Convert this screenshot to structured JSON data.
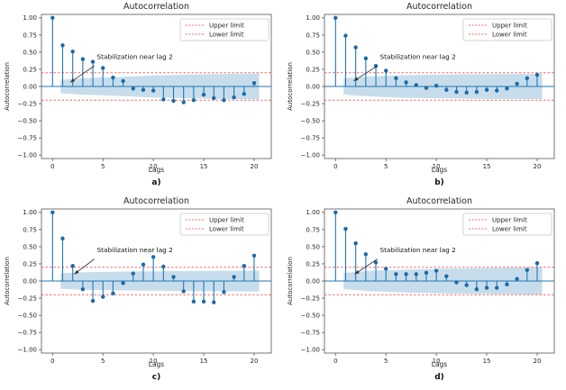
{
  "colors": {
    "stem": "#1f77b4",
    "marker": "#1c6aa8",
    "zero_line": "#1f77b4",
    "band": "#c7ddec",
    "limit_line": "#f26a6a",
    "spine": "#555555",
    "tick_text": "#262626",
    "annotation": "#333333",
    "legend_border": "#c9c9c9",
    "legend_bg": "#ffffff"
  },
  "chart_data": [
    {
      "type": "stem",
      "sublabel": "a)",
      "title": "Autocorrelation",
      "xlabel": "Lags",
      "ylabel": "Autocorrelation",
      "legend": {
        "position": "upper-right",
        "entries": [
          "Upper limit",
          "Lower limit"
        ]
      },
      "annotation": {
        "text": "Stabilization near lag 2",
        "text_xy": [
          4.4,
          0.4
        ],
        "arrow_from": [
          4.15,
          0.3
        ],
        "arrow_to": [
          1.75,
          0.06
        ]
      },
      "upper_limit": 0.2,
      "lower_limit": -0.2,
      "xlim": [
        -1.1,
        21.7
      ],
      "ylim": [
        -1.05,
        1.05
      ],
      "xticks": [
        0,
        5,
        10,
        15,
        20
      ],
      "yticks": [
        {
          "value": 1.0,
          "label": "1.00"
        },
        {
          "value": 0.75,
          "label": "0.75"
        },
        {
          "value": 0.5,
          "label": "0.50"
        },
        {
          "value": 0.25,
          "label": "0.25"
        },
        {
          "value": 0.0,
          "label": "0.00"
        },
        {
          "value": -0.25,
          "label": "−0.25"
        },
        {
          "value": -0.5,
          "label": "−0.50"
        },
        {
          "value": -0.75,
          "label": "−0.75"
        },
        {
          "value": -1.0,
          "label": "−1.00"
        }
      ],
      "lags": [
        0,
        1,
        2,
        3,
        4,
        5,
        6,
        7,
        8,
        9,
        10,
        11,
        12,
        13,
        14,
        15,
        16,
        17,
        18,
        19,
        20
      ],
      "values": [
        1.0,
        0.6,
        0.51,
        0.4,
        0.36,
        0.27,
        0.13,
        0.08,
        -0.03,
        -0.05,
        -0.06,
        -0.19,
        -0.21,
        -0.23,
        -0.2,
        -0.12,
        -0.17,
        -0.2,
        -0.16,
        -0.11,
        0.05
      ],
      "band_halfwidth": [
        0.1,
        0.11,
        0.12,
        0.125,
        0.13,
        0.135,
        0.142,
        0.148,
        0.154,
        0.16,
        0.164,
        0.168,
        0.171,
        0.174,
        0.177,
        0.18,
        0.182,
        0.184,
        0.186,
        0.188
      ]
    },
    {
      "type": "stem",
      "sublabel": "b)",
      "title": "Autocorrelation",
      "xlabel": "Lags",
      "ylabel": "Autocorrelation",
      "legend": {
        "position": "upper-right",
        "entries": [
          "Upper limit",
          "Lower limit"
        ]
      },
      "annotation": {
        "text": "Stabilization near lag 2",
        "text_xy": [
          4.4,
          0.4
        ],
        "arrow_from": [
          4.15,
          0.3
        ],
        "arrow_to": [
          1.8,
          0.08
        ]
      },
      "upper_limit": 0.2,
      "lower_limit": -0.2,
      "xlim": [
        -1.1,
        21.7
      ],
      "ylim": [
        -1.05,
        1.05
      ],
      "xticks": [
        0,
        5,
        10,
        15,
        20
      ],
      "yticks": [
        {
          "value": 1.0,
          "label": "1.00"
        },
        {
          "value": 0.75,
          "label": "0.75"
        },
        {
          "value": 0.5,
          "label": "0.50"
        },
        {
          "value": 0.25,
          "label": "0.25"
        },
        {
          "value": 0.0,
          "label": "0.00"
        },
        {
          "value": -0.25,
          "label": "−0.25"
        },
        {
          "value": -0.5,
          "label": "−0.50"
        },
        {
          "value": -0.75,
          "label": "−0.75"
        },
        {
          "value": -1.0,
          "label": "−1.00"
        }
      ],
      "lags": [
        0,
        1,
        2,
        3,
        4,
        5,
        6,
        7,
        8,
        9,
        10,
        11,
        12,
        13,
        14,
        15,
        16,
        17,
        18,
        19,
        20
      ],
      "values": [
        1.0,
        0.74,
        0.57,
        0.41,
        0.3,
        0.23,
        0.12,
        0.06,
        0.02,
        -0.02,
        0.01,
        -0.05,
        -0.08,
        -0.09,
        -0.08,
        -0.05,
        -0.06,
        -0.03,
        0.04,
        0.12,
        0.17
      ],
      "band_halfwidth": [
        0.12,
        0.132,
        0.142,
        0.15,
        0.156,
        0.161,
        0.165,
        0.168,
        0.17,
        0.172,
        0.174,
        0.176,
        0.178,
        0.179,
        0.18,
        0.181,
        0.182,
        0.183,
        0.184,
        0.185
      ]
    },
    {
      "type": "stem",
      "sublabel": "c)",
      "title": "Autocorrelation",
      "xlabel": "Lags",
      "ylabel": "Autocorrelation",
      "legend": {
        "position": "upper-right",
        "entries": [
          "Upper limit",
          "Lower limit"
        ]
      },
      "annotation": {
        "text": "Stabilization near lag 2",
        "text_xy": [
          4.4,
          0.42
        ],
        "arrow_from": [
          4.15,
          0.32
        ],
        "arrow_to": [
          2.15,
          0.1
        ]
      },
      "upper_limit": 0.2,
      "lower_limit": -0.2,
      "xlim": [
        -1.1,
        21.7
      ],
      "ylim": [
        -1.05,
        1.05
      ],
      "xticks": [
        0,
        5,
        10,
        15,
        20
      ],
      "yticks": [
        {
          "value": 1.0,
          "label": "1.00"
        },
        {
          "value": 0.75,
          "label": "0.75"
        },
        {
          "value": 0.5,
          "label": "0.50"
        },
        {
          "value": 0.25,
          "label": "0.25"
        },
        {
          "value": 0.0,
          "label": "0.00"
        },
        {
          "value": -0.25,
          "label": "−0.25"
        },
        {
          "value": -0.5,
          "label": "−0.50"
        },
        {
          "value": -0.75,
          "label": "−0.75"
        },
        {
          "value": -1.0,
          "label": "−1.00"
        }
      ],
      "lags": [
        0,
        1,
        2,
        3,
        4,
        5,
        6,
        7,
        8,
        9,
        10,
        11,
        12,
        13,
        14,
        15,
        16,
        17,
        18,
        19,
        20
      ],
      "values": [
        1.0,
        0.62,
        0.22,
        -0.12,
        -0.29,
        -0.23,
        -0.18,
        -0.03,
        0.11,
        0.24,
        0.35,
        0.21,
        0.06,
        -0.15,
        -0.3,
        -0.3,
        -0.31,
        -0.16,
        0.06,
        0.22,
        0.37
      ],
      "band_halfwidth": [
        0.115,
        0.122,
        0.127,
        0.13,
        0.133,
        0.135,
        0.137,
        0.139,
        0.14,
        0.142,
        0.143,
        0.144,
        0.145,
        0.146,
        0.147,
        0.148,
        0.149,
        0.15,
        0.151,
        0.152
      ]
    },
    {
      "type": "stem",
      "sublabel": "d)",
      "title": "Autocorrelation",
      "xlabel": "Lags",
      "ylabel": "Autocorrelation",
      "legend": {
        "position": "upper-right",
        "entries": [
          "Upper limit",
          "Lower limit"
        ]
      },
      "annotation": {
        "text": "Stabilization near lag 2",
        "text_xy": [
          4.4,
          0.42
        ],
        "arrow_from": [
          4.15,
          0.32
        ],
        "arrow_to": [
          1.9,
          0.1
        ]
      },
      "upper_limit": 0.2,
      "lower_limit": -0.2,
      "xlim": [
        -1.1,
        21.7
      ],
      "ylim": [
        -1.05,
        1.05
      ],
      "xticks": [
        0,
        5,
        10,
        15,
        20
      ],
      "yticks": [
        {
          "value": 1.0,
          "label": "1.00"
        },
        {
          "value": 0.75,
          "label": "0.75"
        },
        {
          "value": 0.5,
          "label": "0.50"
        },
        {
          "value": 0.25,
          "label": "0.25"
        },
        {
          "value": 0.0,
          "label": "0.00"
        },
        {
          "value": -0.25,
          "label": "−0.25"
        },
        {
          "value": -0.5,
          "label": "−0.50"
        },
        {
          "value": -0.75,
          "label": "−0.75"
        },
        {
          "value": -1.0,
          "label": "−1.00"
        }
      ],
      "lags": [
        0,
        1,
        2,
        3,
        4,
        5,
        6,
        7,
        8,
        9,
        10,
        11,
        12,
        13,
        14,
        15,
        16,
        17,
        18,
        19,
        20
      ],
      "values": [
        1.0,
        0.76,
        0.55,
        0.39,
        0.27,
        0.18,
        0.1,
        0.1,
        0.1,
        0.12,
        0.15,
        0.07,
        -0.02,
        -0.06,
        -0.12,
        -0.1,
        -0.1,
        -0.05,
        0.03,
        0.16,
        0.26
      ],
      "band_halfwidth": [
        0.12,
        0.133,
        0.144,
        0.152,
        0.158,
        0.163,
        0.167,
        0.171,
        0.174,
        0.177,
        0.18,
        0.182,
        0.184,
        0.186,
        0.188,
        0.19,
        0.192,
        0.194,
        0.196,
        0.198
      ]
    }
  ]
}
